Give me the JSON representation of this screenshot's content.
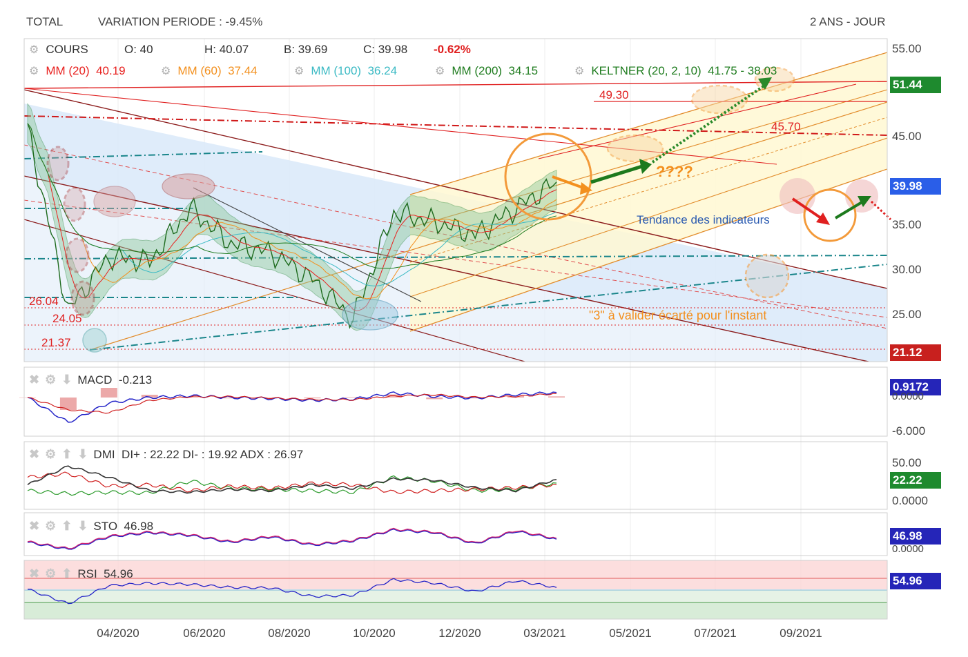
{
  "header": {
    "instrument": "TOTAL",
    "variation": "VARIATION PERIODE : -9.45%",
    "period": "2 ANS - JOUR"
  },
  "legend": {
    "cours": {
      "label": "COURS",
      "o": "O: 40",
      "h": "H: 40.07",
      "b": "B: 39.69",
      "c": "C: 39.98",
      "chg": "-0.62%"
    },
    "mm20": {
      "label": "MM (20)",
      "value": "40.19",
      "color": "#e8211f"
    },
    "mm60": {
      "label": "MM (60)",
      "value": "37.44",
      "color": "#f3901e"
    },
    "mm100": {
      "label": "MM (100)",
      "value": "36.24",
      "color": "#3bbac4"
    },
    "mm200": {
      "label": "MM (200)",
      "value": "34.15",
      "color": "#1f7c1f"
    },
    "keltner": {
      "label": "KELTNER (20, 2, 10)",
      "value": "41.75 - 38.03",
      "color": "#1f7c1f"
    }
  },
  "price_axis": {
    "ticks": [
      "55.00",
      "45.00",
      "35.00",
      "30.00",
      "25.00"
    ]
  },
  "tags": {
    "t5144": {
      "text": "51.44",
      "color": "#1e8a2e"
    },
    "t3998": {
      "text": "39.98",
      "color": "#2a5ee8"
    },
    "t2112": {
      "text": "21.12",
      "color": "#c8201e"
    }
  },
  "annotations": {
    "a4930": "49.30",
    "a4570": "45.70",
    "a2604": "26.04",
    "a2405": "24.05",
    "a2137": "21.37",
    "q": "????",
    "tendance": "Tendance des indicateurs",
    "valider": "\"3\" à valider écarté pour l'instant"
  },
  "macd": {
    "label": "MACD",
    "value": "-0.213",
    "tag": "0.9172",
    "tag_color": "#2525b8",
    "axis_zero": "0.0000",
    "axis_low": "-6.000"
  },
  "dmi": {
    "label": "DMI",
    "values": "DI+ : 22.22 DI- : 19.92 ADX : 26.97",
    "tag": "22.22",
    "tag_color": "#1e8a2e",
    "axis_top": "50.00",
    "axis_zero": "0.0000"
  },
  "sto": {
    "label": "STO",
    "value": "46.98",
    "tag": "46.98",
    "tag_color": "#2525b8",
    "axis_zero": "0.0000"
  },
  "rsi": {
    "label": "RSI",
    "value": "54.96",
    "tag": "54.96",
    "tag_color": "#2525b8"
  },
  "x_axis": {
    "labels": [
      "04/2020",
      "06/2020",
      "08/2020",
      "10/2020",
      "12/2020",
      "03/2021",
      "05/2021",
      "07/2021",
      "09/2021"
    ]
  },
  "chart_data": {
    "type": "line",
    "subtitle": "VARIATION PERIODE : -9.45%",
    "x": [
      "2020-02",
      "2020-03",
      "2020-04",
      "2020-05",
      "2020-06",
      "2020-07",
      "2020-08",
      "2020-09",
      "2020-10",
      "2020-11",
      "2020-12",
      "2021-01",
      "2021-02",
      "2021-03"
    ],
    "series": [
      {
        "name": "COURS",
        "values": [
          46.0,
          25.5,
          31.5,
          31.0,
          37.0,
          33.0,
          32.0,
          29.0,
          24.5,
          36.5,
          35.5,
          34.0,
          37.0,
          39.98
        ]
      }
    ],
    "ylim": [
      20.5,
      56
    ],
    "levels": [
      49.3,
      45.7,
      26.04,
      24.05,
      21.37
    ],
    "macd": [
      0.0,
      -4.5,
      -1.0,
      0.0,
      0.3,
      0.0,
      -0.2,
      -0.5,
      -0.3,
      0.8,
      0.2,
      -0.1,
      0.5,
      0.9172
    ],
    "dmi_plus": [
      12,
      8,
      10,
      9,
      25,
      15,
      14,
      12,
      10,
      30,
      25,
      12,
      14,
      22.22
    ],
    "dmi_minus": [
      30,
      35,
      18,
      20,
      12,
      18,
      15,
      22,
      20,
      10,
      12,
      14,
      16,
      19.92
    ],
    "adx": [
      20,
      45,
      30,
      12,
      10,
      14,
      12,
      20,
      15,
      28,
      26,
      16,
      12,
      26.97
    ],
    "sto": [
      35,
      10,
      55,
      70,
      60,
      35,
      55,
      25,
      40,
      80,
      70,
      30,
      75,
      46.98
    ],
    "rsi": [
      52,
      28,
      58,
      62,
      60,
      55,
      54,
      40,
      42,
      68,
      62,
      48,
      66,
      54.96
    ]
  }
}
